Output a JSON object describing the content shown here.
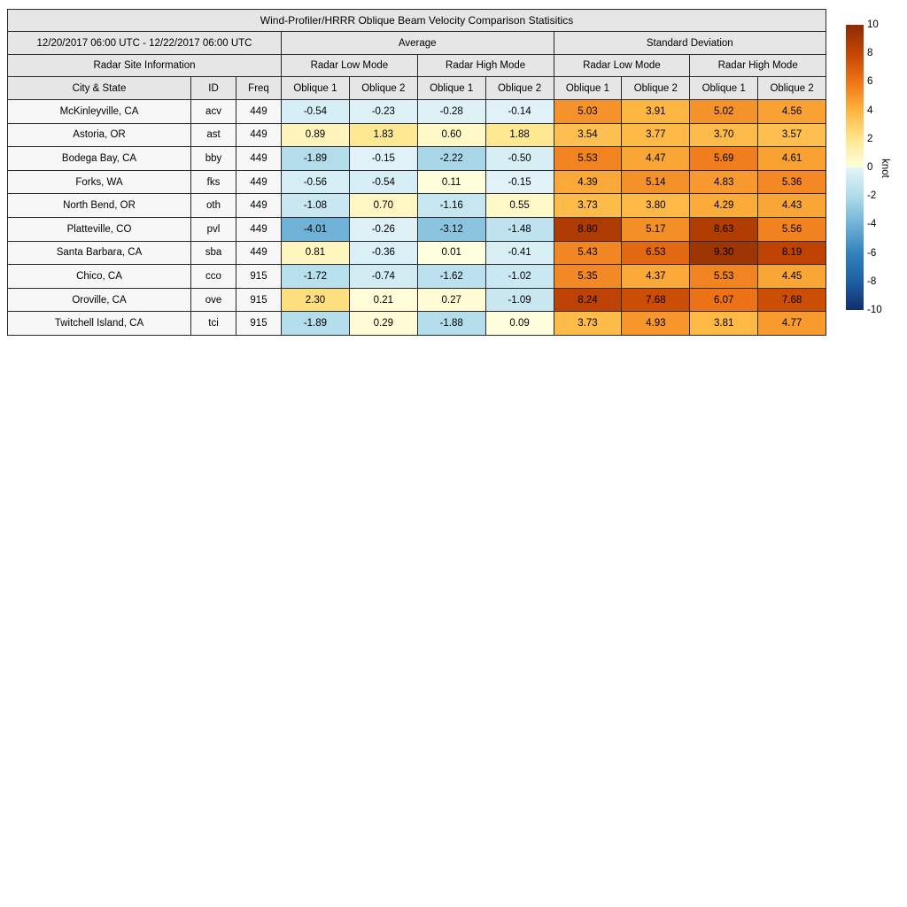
{
  "chart_data": {
    "type": "heatmap",
    "title": "Wind-Profiler/HRRR Oblique Beam Velocity Comparison Statisitics",
    "date_range": "12/20/2017 06:00 UTC - 12/22/2017 06:00 UTC",
    "groups": {
      "average": "Average",
      "standard_deviation": "Standard Deviation",
      "site_information": "Radar Site Information",
      "low_mode": "Radar Low Mode",
      "high_mode": "Radar High Mode"
    },
    "columns": {
      "city": "City & State",
      "id": "ID",
      "freq": "Freq",
      "oblique1": "Oblique 1",
      "oblique2": "Oblique 2"
    },
    "rows": [
      {
        "city": "McKinleyville, CA",
        "id": "acv",
        "freq": "449",
        "avg": [
          -0.54,
          -0.23,
          -0.28,
          -0.14
        ],
        "std": [
          5.03,
          3.91,
          5.02,
          4.56
        ]
      },
      {
        "city": "Astoria, OR",
        "id": "ast",
        "freq": "449",
        "avg": [
          0.89,
          1.83,
          0.6,
          1.88
        ],
        "std": [
          3.54,
          3.77,
          3.7,
          3.57
        ]
      },
      {
        "city": "Bodega Bay, CA",
        "id": "bby",
        "freq": "449",
        "avg": [
          -1.89,
          -0.15,
          -2.22,
          -0.5
        ],
        "std": [
          5.53,
          4.47,
          5.69,
          4.61
        ]
      },
      {
        "city": "Forks, WA",
        "id": "fks",
        "freq": "449",
        "avg": [
          -0.56,
          -0.54,
          0.11,
          -0.15
        ],
        "std": [
          4.39,
          5.14,
          4.83,
          5.36
        ]
      },
      {
        "city": "North Bend, OR",
        "id": "oth",
        "freq": "449",
        "avg": [
          -1.08,
          0.7,
          -1.16,
          0.55
        ],
        "std": [
          3.73,
          3.8,
          4.29,
          4.43
        ]
      },
      {
        "city": "Platteville, CO",
        "id": "pvl",
        "freq": "449",
        "avg": [
          -4.01,
          -0.26,
          -3.12,
          -1.48
        ],
        "std": [
          8.8,
          5.17,
          8.63,
          5.56
        ]
      },
      {
        "city": "Santa Barbara, CA",
        "id": "sba",
        "freq": "449",
        "avg": [
          0.81,
          -0.36,
          0.01,
          -0.41
        ],
        "std": [
          5.43,
          6.53,
          9.3,
          8.19
        ]
      },
      {
        "city": "Chico, CA",
        "id": "cco",
        "freq": "915",
        "avg": [
          -1.72,
          -0.74,
          -1.62,
          -1.02
        ],
        "std": [
          5.35,
          4.37,
          5.53,
          4.45
        ]
      },
      {
        "city": "Oroville, CA",
        "id": "ove",
        "freq": "915",
        "avg": [
          2.3,
          0.21,
          0.27,
          -1.09
        ],
        "std": [
          8.24,
          7.68,
          6.07,
          7.68
        ]
      },
      {
        "city": "Twitchell Island, CA",
        "id": "tci",
        "freq": "915",
        "avg": [
          -1.89,
          0.29,
          -1.88,
          0.09
        ],
        "std": [
          3.73,
          4.93,
          3.81,
          4.77
        ]
      }
    ],
    "colorbar": {
      "unit": "knot",
      "min": -10,
      "max": 10,
      "ticks": [
        10,
        8,
        6,
        4,
        2,
        0,
        -2,
        -4,
        -6,
        -8,
        -10
      ]
    },
    "colormap": {
      "positive": [
        {
          "value": 0,
          "color": "#ffffe0"
        },
        {
          "value": 2,
          "color": "#fee68c"
        },
        {
          "value": 4,
          "color": "#fdb43e"
        },
        {
          "value": 6,
          "color": "#ee7418"
        },
        {
          "value": 8,
          "color": "#c44503"
        },
        {
          "value": 10,
          "color": "#8a2c04"
        }
      ],
      "negative": [
        {
          "value": 0,
          "color": "#e4f4f9"
        },
        {
          "value": 2,
          "color": "#b0dcea"
        },
        {
          "value": 4,
          "color": "#70b1d7"
        },
        {
          "value": 6,
          "color": "#3282bd"
        },
        {
          "value": 8,
          "color": "#1e5fa5"
        },
        {
          "value": 10,
          "color": "#102f6b"
        }
      ]
    }
  }
}
